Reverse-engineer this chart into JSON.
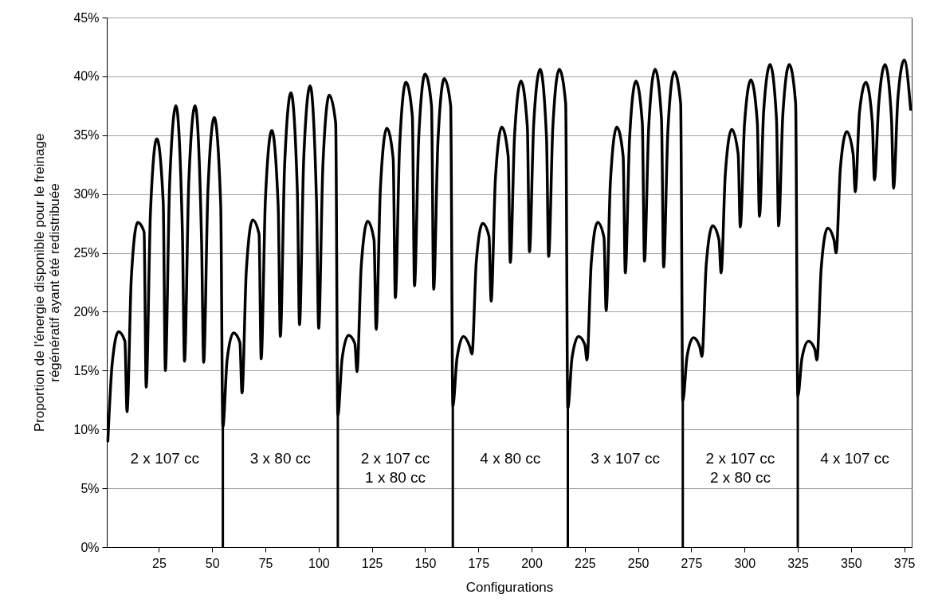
{
  "chart_data": {
    "type": "line",
    "xlabel": "Configurations",
    "ylabel": "Proportion de l'énergie disponible pour le freinage\nrégénératif ayant été redistribuée",
    "color": "#000000",
    "x": [
      1,
      3,
      6,
      9,
      10,
      12,
      15,
      18,
      19,
      21,
      24,
      27,
      28,
      30,
      33,
      36,
      37,
      39,
      42,
      45,
      46,
      48,
      51,
      54,
      55,
      57,
      60,
      63,
      64,
      66,
      69,
      72,
      73,
      75,
      78,
      81,
      82,
      84,
      87,
      90,
      91,
      93,
      96,
      99,
      100,
      102,
      105,
      108,
      109,
      111,
      114,
      117,
      118,
      120,
      123,
      126,
      127,
      129,
      132,
      135,
      136,
      138,
      141,
      144,
      145,
      147,
      150,
      153,
      154,
      156,
      159,
      162,
      163,
      165,
      168,
      171,
      172,
      174,
      177,
      180,
      181,
      183,
      186,
      189,
      190,
      192,
      195,
      198,
      199,
      201,
      204,
      207,
      208,
      210,
      213,
      216,
      217,
      219,
      222,
      225,
      226,
      228,
      231,
      234,
      235,
      237,
      240,
      243,
      244,
      246,
      249,
      252,
      253,
      255,
      258,
      261,
      262,
      264,
      267,
      270,
      271,
      273,
      276,
      279,
      280,
      282,
      285,
      288,
      289,
      291,
      294,
      297,
      298,
      300,
      303,
      306,
      307,
      309,
      312,
      315,
      316,
      318,
      321,
      324,
      325,
      327,
      330,
      333,
      334,
      336,
      339,
      342,
      343,
      345,
      348,
      351,
      352,
      354,
      357,
      360,
      361,
      363,
      366,
      369,
      370,
      372,
      375,
      378
    ],
    "values": [
      9.0,
      15.5,
      18.3,
      17.5,
      11.5,
      22.8,
      27.6,
      26.8,
      13.6,
      28.4,
      34.7,
      29.3,
      15.0,
      30.8,
      37.5,
      26.8,
      15.8,
      31.0,
      37.5,
      26.1,
      15.7,
      30.3,
      36.5,
      29.1,
      10.2,
      15.9,
      18.2,
      17.4,
      13.1,
      23.4,
      27.8,
      26.6,
      16.0,
      29.6,
      35.4,
      28.9,
      17.9,
      32.4,
      38.6,
      30.2,
      18.9,
      33.1,
      39.2,
      29.3,
      18.6,
      32.5,
      38.4,
      36.0,
      11.2,
      16.0,
      18.0,
      17.3,
      14.9,
      23.9,
      27.7,
      26.1,
      18.5,
      30.5,
      35.6,
      33.0,
      21.2,
      34.0,
      39.5,
      36.6,
      22.2,
      34.8,
      40.2,
      37.5,
      21.9,
      34.4,
      39.8,
      37.5,
      12.0,
      16.1,
      17.9,
      17.0,
      16.4,
      24.2,
      27.5,
      26.4,
      20.9,
      31.3,
      35.7,
      33.2,
      24.2,
      35.0,
      39.6,
      35.7,
      25.1,
      36.0,
      40.6,
      34.8,
      24.7,
      35.8,
      40.6,
      37.7,
      11.8,
      16.1,
      17.9,
      17.2,
      15.9,
      24.1,
      27.6,
      26.3,
      20.1,
      31.0,
      35.7,
      33.2,
      23.3,
      34.7,
      39.6,
      36.0,
      24.3,
      35.7,
      40.6,
      36.4,
      23.8,
      35.4,
      40.4,
      37.7,
      12.4,
      16.2,
      17.8,
      17.0,
      16.2,
      24.0,
      27.3,
      26.1,
      23.3,
      31.8,
      35.5,
      33.4,
      27.2,
      36.0,
      39.7,
      36.1,
      28.1,
      37.1,
      41.0,
      36.4,
      27.3,
      36.8,
      41.0,
      37.7,
      12.8,
      16.1,
      17.5,
      16.8,
      15.9,
      23.7,
      27.1,
      26.1,
      25.0,
      32.2,
      35.3,
      33.4,
      30.2,
      37.0,
      39.5,
      36.1,
      31.2,
      37.6,
      41.0,
      36.4,
      30.5,
      38.1,
      41.4,
      37.2
    ],
    "xlim": [
      0.5,
      378.5
    ],
    "xticks": [
      25,
      50,
      75,
      100,
      125,
      150,
      175,
      200,
      225,
      250,
      275,
      300,
      325,
      350,
      375
    ],
    "ylim": [
      0,
      45
    ],
    "yticks": [
      {
        "value": 0,
        "label": "0%"
      },
      {
        "value": 5,
        "label": "5%"
      },
      {
        "value": 10,
        "label": "10%"
      },
      {
        "value": 15,
        "label": "15%"
      },
      {
        "value": 20,
        "label": "20%"
      },
      {
        "value": 25,
        "label": "25%"
      },
      {
        "value": 30,
        "label": "30%"
      },
      {
        "value": 35,
        "label": "35%"
      },
      {
        "value": 40,
        "label": "40%"
      },
      {
        "value": 45,
        "label": "45%"
      }
    ],
    "grid": "y",
    "ref_lines": [
      {
        "axis": "x",
        "value": 55
      },
      {
        "axis": "x",
        "value": 109
      },
      {
        "axis": "x",
        "value": 163
      },
      {
        "axis": "x",
        "value": 217
      },
      {
        "axis": "x",
        "value": 271
      },
      {
        "axis": "x",
        "value": 325
      }
    ],
    "annotations": [
      "2 x 107 cc",
      "3 x 80 cc",
      "2 x 107 cc\n1 x 80 cc",
      "4 x 80 cc",
      "3 x 107 cc",
      "2 x 107 cc\n2 x 80 cc",
      "4 x 107 cc"
    ]
  }
}
